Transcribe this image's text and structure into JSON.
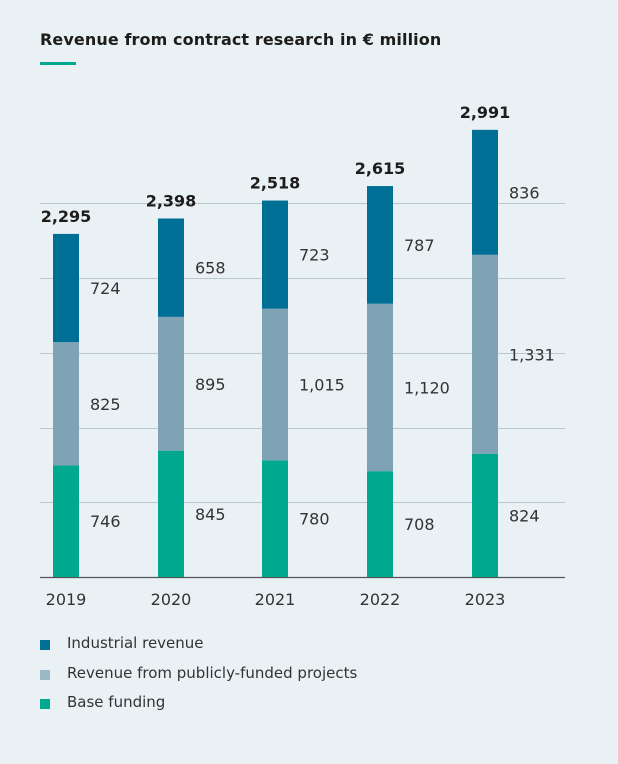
{
  "chart_data": {
    "type": "bar",
    "stacked": true,
    "title": "Revenue from contract research in € million",
    "categories": [
      "2019",
      "2020",
      "2021",
      "2022",
      "2023"
    ],
    "series": [
      {
        "name": "Base funding",
        "color": "#00a88f",
        "values": [
          746,
          845,
          780,
          708,
          824
        ],
        "labels": [
          "746",
          "845",
          "780",
          "708",
          "824"
        ]
      },
      {
        "name": "Revenue from publicly-funded projects",
        "color": "#7fa2b5",
        "values": [
          825,
          895,
          1015,
          1120,
          1331
        ],
        "labels": [
          "825",
          "895",
          "1,015",
          "1,120",
          "1,331"
        ]
      },
      {
        "name": "Industrial revenue",
        "color": "#006f96",
        "values": [
          724,
          658,
          723,
          787,
          836
        ],
        "labels": [
          "724",
          "658",
          "723",
          "787",
          "836"
        ]
      }
    ],
    "totals": [
      2295,
      2398,
      2518,
      2615,
      2991
    ],
    "total_labels": [
      "2,295",
      "2,398",
      "2,518",
      "2,615",
      "2,991"
    ],
    "ylim": [
      0,
      3000
    ],
    "xlabel": "",
    "ylabel": "",
    "grid": true
  },
  "legend": [
    {
      "label": "Industrial revenue",
      "color": "#006f96"
    },
    {
      "label": "Revenue from publicly-funded projects",
      "color": "#9bb8c7"
    },
    {
      "label": "Base funding",
      "color": "#00a88f"
    }
  ]
}
